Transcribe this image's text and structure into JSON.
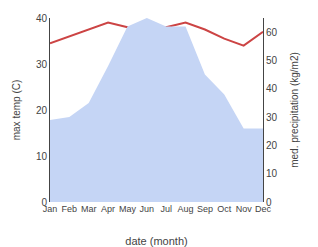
{
  "chart_data": {
    "type": "line",
    "categories": [
      "Jan",
      "Feb",
      "Mar",
      "Apr",
      "May",
      "Jun",
      "Jul",
      "Aug",
      "Sep",
      "Oct",
      "Nov",
      "Dec"
    ],
    "series": [
      {
        "type": "area",
        "axis": "y2",
        "color": "#c5d5f5",
        "values": [
          29,
          30,
          35,
          48,
          62,
          65,
          62,
          62,
          45,
          38,
          26,
          26
        ]
      },
      {
        "type": "line",
        "color": "#cc4444",
        "values": [
          34.5,
          36.0,
          37.5,
          39.0,
          38.0,
          35.5,
          38.0,
          39.0,
          37.5,
          35.5,
          34.0,
          37.0
        ]
      }
    ],
    "xlabel": "date (month)",
    "ylabel": "max temp (C)",
    "y2label": "med. precipitation (kg/m2)",
    "ylim": [
      0,
      40
    ],
    "yticks": [
      0,
      10,
      20,
      30,
      40
    ],
    "y2lim": [
      0,
      65
    ],
    "y2ticks": [
      0,
      10,
      20,
      30,
      40,
      50,
      60
    ],
    "grid": false
  }
}
